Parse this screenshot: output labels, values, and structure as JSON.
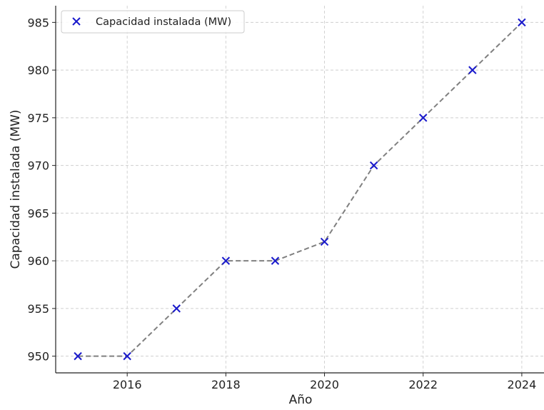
{
  "chart_data": {
    "type": "line",
    "title": "",
    "xlabel": "Año",
    "ylabel": "Capacidad instalada (MW)",
    "x": [
      2015,
      2016,
      2017,
      2018,
      2019,
      2020,
      2021,
      2022,
      2023,
      2024
    ],
    "series": [
      {
        "name": "Capacidad instalada (MW)",
        "values": [
          950,
          950,
          955,
          960,
          960,
          962,
          970,
          975,
          980,
          985
        ],
        "marker": "x",
        "marker_color": "#1a1acc",
        "line_color": "#808080",
        "line_style": "dashed"
      }
    ],
    "xticks": [
      "2016",
      "2018",
      "2020",
      "2022",
      "2024"
    ],
    "yticks": [
      "950",
      "955",
      "960",
      "965",
      "970",
      "975",
      "980",
      "985"
    ],
    "xlim": [
      2014.55,
      2024.45
    ],
    "ylim": [
      948.25,
      986.75
    ],
    "grid": true,
    "legend_position": "top-left"
  }
}
